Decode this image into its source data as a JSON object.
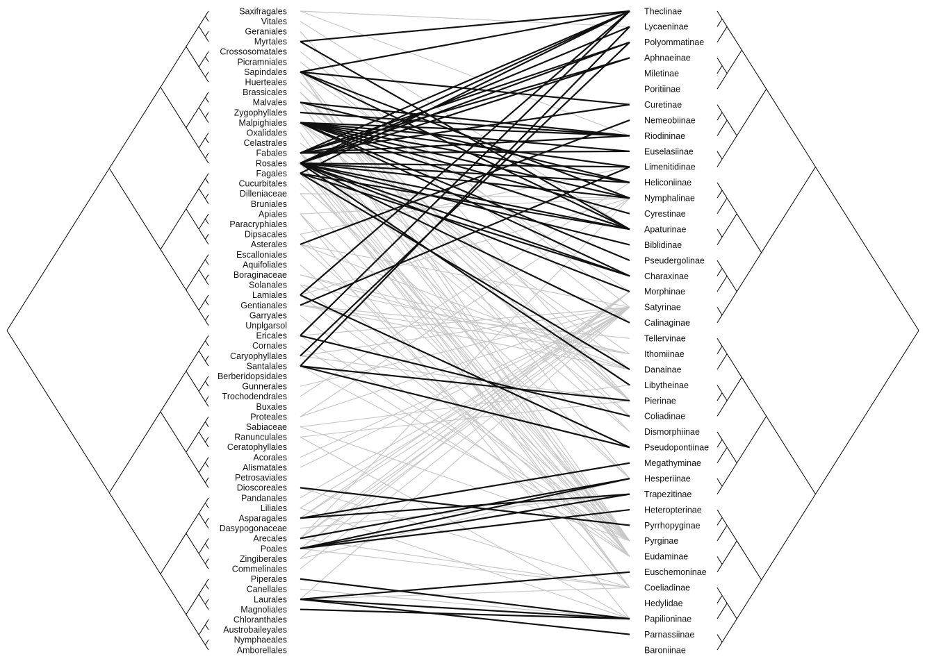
{
  "colors": {
    "strong_link": "#111111",
    "weak_link": "#c8c8c8",
    "tree": "#000000",
    "background": "#ffffff"
  },
  "plants": [
    "Saxifragales",
    "Vitales",
    "Geraniales",
    "Myrtales",
    "Crossosomatales",
    "Picramniales",
    "Sapindales",
    "Huerteales",
    "Brassicales",
    "Malvales",
    "Zygophyllales",
    "Malpighiales",
    "Oxalidales",
    "Celastrales",
    "Fabales",
    "Rosales",
    "Fagales",
    "Cucurbitales",
    "Dilleniaceae",
    "Bruniales",
    "Apiales",
    "Paracryphiales",
    "Dipsacales",
    "Asterales",
    "Escalloniales",
    "Aquifoliales",
    "Boraginaceae",
    "Solanales",
    "Lamiales",
    "Gentianales",
    "Garryales",
    "Unplgarsol",
    "Ericales",
    "Cornales",
    "Caryophyllales",
    "Santalales",
    "Berberidopsidales",
    "Gunnerales",
    "Trochodendrales",
    "Buxales",
    "Proteales",
    "Sabiaceae",
    "Ranunculales",
    "Ceratophyllales",
    "Acorales",
    "Alismatales",
    "Petrosaviales",
    "Dioscoreales",
    "Pandanales",
    "Liliales",
    "Asparagales",
    "Dasypogonaceae",
    "Arecales",
    "Poales",
    "Zingiberales",
    "Commelinales",
    "Piperales",
    "Canellales",
    "Laurales",
    "Magnoliales",
    "Chloranthales",
    "Austrobaileyales",
    "Nymphaeales",
    "Amborellales"
  ],
  "butterflies": [
    "Theclinae",
    "Lycaeninae",
    "Polyommatinae",
    "Aphnaeinae",
    "Miletinae",
    "Poritiinae",
    "Curetinae",
    "Nemeobiinae",
    "Riodininae",
    "Euselasiinae",
    "Limenitidinae",
    "Heliconiinae",
    "Nymphalinae",
    "Cyrestinae",
    "Apaturinae",
    "Biblidinae",
    "Pseudergolinae",
    "Charaxinae",
    "Morphinae",
    "Satyrinae",
    "Calinaginae",
    "Tellervinae",
    "Ithomiinae",
    "Danainae",
    "Libytheinae",
    "Pierinae",
    "Coliadinae",
    "Dismorphiinae",
    "Pseudopontiinae",
    "Megathyminae",
    "Hesperiinae",
    "Trapezitinae",
    "Heteropterinae",
    "Pyrrhopyginae",
    "Pyrginae",
    "Eudaminae",
    "Euschemoninae",
    "Coeliadinae",
    "Hedylidae",
    "Papilioninae",
    "Parnassiinae",
    "Baroniinae"
  ],
  "strong_links": [
    [
      "Myrtales",
      "Theclinae"
    ],
    [
      "Myrtales",
      "Apaturinae"
    ],
    [
      "Sapindales",
      "Theclinae"
    ],
    [
      "Sapindales",
      "Curetinae"
    ],
    [
      "Sapindales",
      "Nymphalinae"
    ],
    [
      "Sapindales",
      "Apaturinae"
    ],
    [
      "Malvales",
      "Riodininae"
    ],
    [
      "Malvales",
      "Heliconiinae"
    ],
    [
      "Zygophyllales",
      "Riodininae"
    ],
    [
      "Malpighiales",
      "Riodininae"
    ],
    [
      "Malpighiales",
      "Euselasiinae"
    ],
    [
      "Malpighiales",
      "Limenitidinae"
    ],
    [
      "Malpighiales",
      "Heliconiinae"
    ],
    [
      "Malpighiales",
      "Nymphalinae"
    ],
    [
      "Malpighiales",
      "Cyrestinae"
    ],
    [
      "Malpighiales",
      "Apaturinae"
    ],
    [
      "Malpighiales",
      "Pseudergolinae"
    ],
    [
      "Malpighiales",
      "Charaxinae"
    ],
    [
      "Fabales",
      "Theclinae"
    ],
    [
      "Fabales",
      "Polyommatinae"
    ],
    [
      "Fabales",
      "Aphnaeinae"
    ],
    [
      "Fabales",
      "Curetinae"
    ],
    [
      "Fabales",
      "Riodininae"
    ],
    [
      "Fabales",
      "Euselasiinae"
    ],
    [
      "Rosales",
      "Theclinae"
    ],
    [
      "Rosales",
      "Lycaeninae"
    ],
    [
      "Rosales",
      "Polyommatinae"
    ],
    [
      "Rosales",
      "Aphnaeinae"
    ],
    [
      "Rosales",
      "Limenitidinae"
    ],
    [
      "Rosales",
      "Heliconiinae"
    ],
    [
      "Rosales",
      "Nymphalinae"
    ],
    [
      "Rosales",
      "Apaturinae"
    ],
    [
      "Rosales",
      "Biblidinae"
    ],
    [
      "Rosales",
      "Charaxinae"
    ],
    [
      "Rosales",
      "Morphinae"
    ],
    [
      "Rosales",
      "Calinaginae"
    ],
    [
      "Rosales",
      "Libytheinae"
    ],
    [
      "Fagales",
      "Theclinae"
    ],
    [
      "Fagales",
      "Apaturinae"
    ],
    [
      "Fagales",
      "Charaxinae"
    ],
    [
      "Fagales",
      "Danainae"
    ],
    [
      "Asterales",
      "Nemeobiinae"
    ],
    [
      "Lamiales",
      "Theclinae"
    ],
    [
      "Lamiales",
      "Pseudopontiinae"
    ],
    [
      "Gentianales",
      "Limenitidinae"
    ],
    [
      "Ericales",
      "Theclinae"
    ],
    [
      "Ericales",
      "Coliadinae"
    ],
    [
      "Caryophyllales",
      "Polyommatinae"
    ],
    [
      "Santalales",
      "Lycaeninae"
    ],
    [
      "Santalales",
      "Pierinae"
    ],
    [
      "Santalales",
      "Pseudopontiinae"
    ],
    [
      "Dioscoreales",
      "Pyrrhopyginae"
    ],
    [
      "Asparagales",
      "Megathyminae"
    ],
    [
      "Asparagales",
      "Trapezitinae"
    ],
    [
      "Arecales",
      "Hesperiinae"
    ],
    [
      "Poales",
      "Hesperiinae"
    ],
    [
      "Poales",
      "Trapezitinae"
    ],
    [
      "Poales",
      "Heteropterinae"
    ],
    [
      "Piperales",
      "Papilioninae"
    ],
    [
      "Laurales",
      "Euschemoninae"
    ],
    [
      "Laurales",
      "Papilioninae"
    ],
    [
      "Laurales",
      "Parnassiinae"
    ],
    [
      "Magnoliales",
      "Papilioninae"
    ]
  ],
  "weak_links": [
    [
      "Saxifragales",
      "Lycaeninae"
    ],
    [
      "Saxifragales",
      "Riodininae"
    ],
    [
      "Vitales",
      "Apaturinae"
    ],
    [
      "Geraniales",
      "Pierinae"
    ],
    [
      "Crossosomatales",
      "Satyrinae"
    ],
    [
      "Picramniales",
      "Calinaginae"
    ],
    [
      "Sapindales",
      "Pyrginae"
    ],
    [
      "Sapindales",
      "Hesperiinae"
    ],
    [
      "Sapindales",
      "Eudaminae"
    ],
    [
      "Sapindales",
      "Morphinae"
    ],
    [
      "Huerteales",
      "Pierinae"
    ],
    [
      "Brassicales",
      "Pierinae"
    ],
    [
      "Brassicales",
      "Coliadinae"
    ],
    [
      "Brassicales",
      "Dismorphiinae"
    ],
    [
      "Malvales",
      "Pyrginae"
    ],
    [
      "Malvales",
      "Eudaminae"
    ],
    [
      "Malvales",
      "Danainae"
    ],
    [
      "Malpighiales",
      "Pyrginae"
    ],
    [
      "Malpighiales",
      "Pierinae"
    ],
    [
      "Malpighiales",
      "Ithomiinae"
    ],
    [
      "Oxalidales",
      "Coeliadinae"
    ],
    [
      "Celastrales",
      "Pierinae"
    ],
    [
      "Fabales",
      "Pyrginae"
    ],
    [
      "Fabales",
      "Eudaminae"
    ],
    [
      "Fabales",
      "Coliadinae"
    ],
    [
      "Fabales",
      "Hesperiinae"
    ],
    [
      "Fabales",
      "Coeliadinae"
    ],
    [
      "Fabales",
      "Dismorphiinae"
    ],
    [
      "Rosales",
      "Pyrginae"
    ],
    [
      "Rosales",
      "Coeliadinae"
    ],
    [
      "Fagales",
      "Eudaminae"
    ],
    [
      "Fagales",
      "Pyrginae"
    ],
    [
      "Cucurbitales",
      "Hesperiinae"
    ],
    [
      "Dilleniaceae",
      "Eudaminae"
    ],
    [
      "Dilleniaceae",
      "Nymphalinae"
    ],
    [
      "Apiales",
      "Papilioninae"
    ],
    [
      "Apiales",
      "Pyrginae"
    ],
    [
      "Apiales",
      "Nymphalinae"
    ],
    [
      "Dipsacales",
      "Coeliadinae"
    ],
    [
      "Dipsacales",
      "Limenitidinae"
    ],
    [
      "Asterales",
      "Pyrginae"
    ],
    [
      "Asterales",
      "Satyrinae"
    ],
    [
      "Asterales",
      "Danainae"
    ],
    [
      "Aquifoliales",
      "Eudaminae"
    ],
    [
      "Boraginaceae",
      "Danainae"
    ],
    [
      "Boraginaceae",
      "Ithomiinae"
    ],
    [
      "Solanales",
      "Ithomiinae"
    ],
    [
      "Solanales",
      "Pyrginae"
    ],
    [
      "Lamiales",
      "Nymphalinae"
    ],
    [
      "Lamiales",
      "Pyrginae"
    ],
    [
      "Gentianales",
      "Danainae"
    ],
    [
      "Gentianales",
      "Ithomiinae"
    ],
    [
      "Gentianales",
      "Tellervinae"
    ],
    [
      "Garryales",
      "Eudaminae"
    ],
    [
      "Ericales",
      "Pyrginae"
    ],
    [
      "Ericales",
      "Satyrinae"
    ],
    [
      "Cornales",
      "Eudaminae"
    ],
    [
      "Caryophyllales",
      "Pierinae"
    ],
    [
      "Caryophyllales",
      "Satyrinae"
    ],
    [
      "Santalales",
      "Pyrginae"
    ],
    [
      "Gunnerales",
      "Satyrinae"
    ],
    [
      "Trochodendrales",
      "Heliconiinae"
    ],
    [
      "Proteales",
      "Nymphalinae"
    ],
    [
      "Proteales",
      "Satyrinae"
    ],
    [
      "Sabiaceae",
      "Libytheinae"
    ],
    [
      "Sabiaceae",
      "Pyrginae"
    ],
    [
      "Ranunculales",
      "Papilioninae"
    ],
    [
      "Ranunculales",
      "Pierinae"
    ],
    [
      "Acorales",
      "Satyrinae"
    ],
    [
      "Alismatales",
      "Satyrinae"
    ],
    [
      "Dioscoreales",
      "Coeliadinae"
    ],
    [
      "Pandanales",
      "Satyrinae"
    ],
    [
      "Liliales",
      "Papilioninae"
    ],
    [
      "Liliales",
      "Satyrinae"
    ],
    [
      "Asparagales",
      "Satyrinae"
    ],
    [
      "Asparagales",
      "Morphinae"
    ],
    [
      "Dasypogonaceae",
      "Trapezitinae"
    ],
    [
      "Arecales",
      "Satyrinae"
    ],
    [
      "Arecales",
      "Coeliadinae"
    ],
    [
      "Arecales",
      "Morphinae"
    ],
    [
      "Arecales",
      "Nymphalinae"
    ],
    [
      "Poales",
      "Satyrinae"
    ],
    [
      "Poales",
      "Coeliadinae"
    ],
    [
      "Poales",
      "Morphinae"
    ],
    [
      "Zingiberales",
      "Morphinae"
    ],
    [
      "Zingiberales",
      "Hesperiinae"
    ],
    [
      "Commelinales",
      "Satyrinae"
    ],
    [
      "Canellales",
      "Papilioninae"
    ],
    [
      "Laurales",
      "Satyrinae"
    ],
    [
      "Laurales",
      "Coeliadinae"
    ]
  ],
  "left_tree": [
    [
      432,
      0,
      -1
    ],
    [
      400,
      1,
      -1
    ],
    [
      2,
      3,
      4
    ],
    [
      412,
      5,
      -1
    ],
    [
      6,
      7,
      -1
    ],
    [
      424,
      8,
      -1
    ],
    [
      9,
      10,
      -1
    ],
    [
      11,
      12,
      -1
    ],
    [
      13,
      14,
      -1
    ],
    [
      15,
      16,
      -1
    ],
    [
      464,
      17,
      -1
    ],
    [
      18,
      19,
      -1
    ],
    [
      20,
      21,
      -1
    ],
    [
      22,
      23,
      -1
    ],
    [
      24,
      25,
      26
    ],
    [
      27,
      28,
      -1
    ],
    [
      436,
      29,
      -1
    ],
    [
      30,
      31,
      -1
    ],
    [
      32,
      33,
      -1
    ],
    [
      34,
      35,
      -1
    ],
    [
      36,
      37,
      -1
    ],
    [
      38,
      39,
      -1
    ],
    [
      40,
      41,
      42
    ],
    [
      43,
      44,
      -1
    ],
    [
      45,
      46,
      -1
    ],
    [
      47,
      48,
      -1
    ],
    [
      49,
      50,
      -1
    ],
    [
      51,
      52,
      -1
    ],
    [
      53,
      54,
      -1
    ],
    [
      55,
      56,
      -1
    ],
    [
      57,
      58,
      -1
    ],
    [
      59,
      60,
      -1
    ],
    [
      61,
      62,
      -1
    ],
    [
      63,
      64,
      -1
    ]
  ]
}
